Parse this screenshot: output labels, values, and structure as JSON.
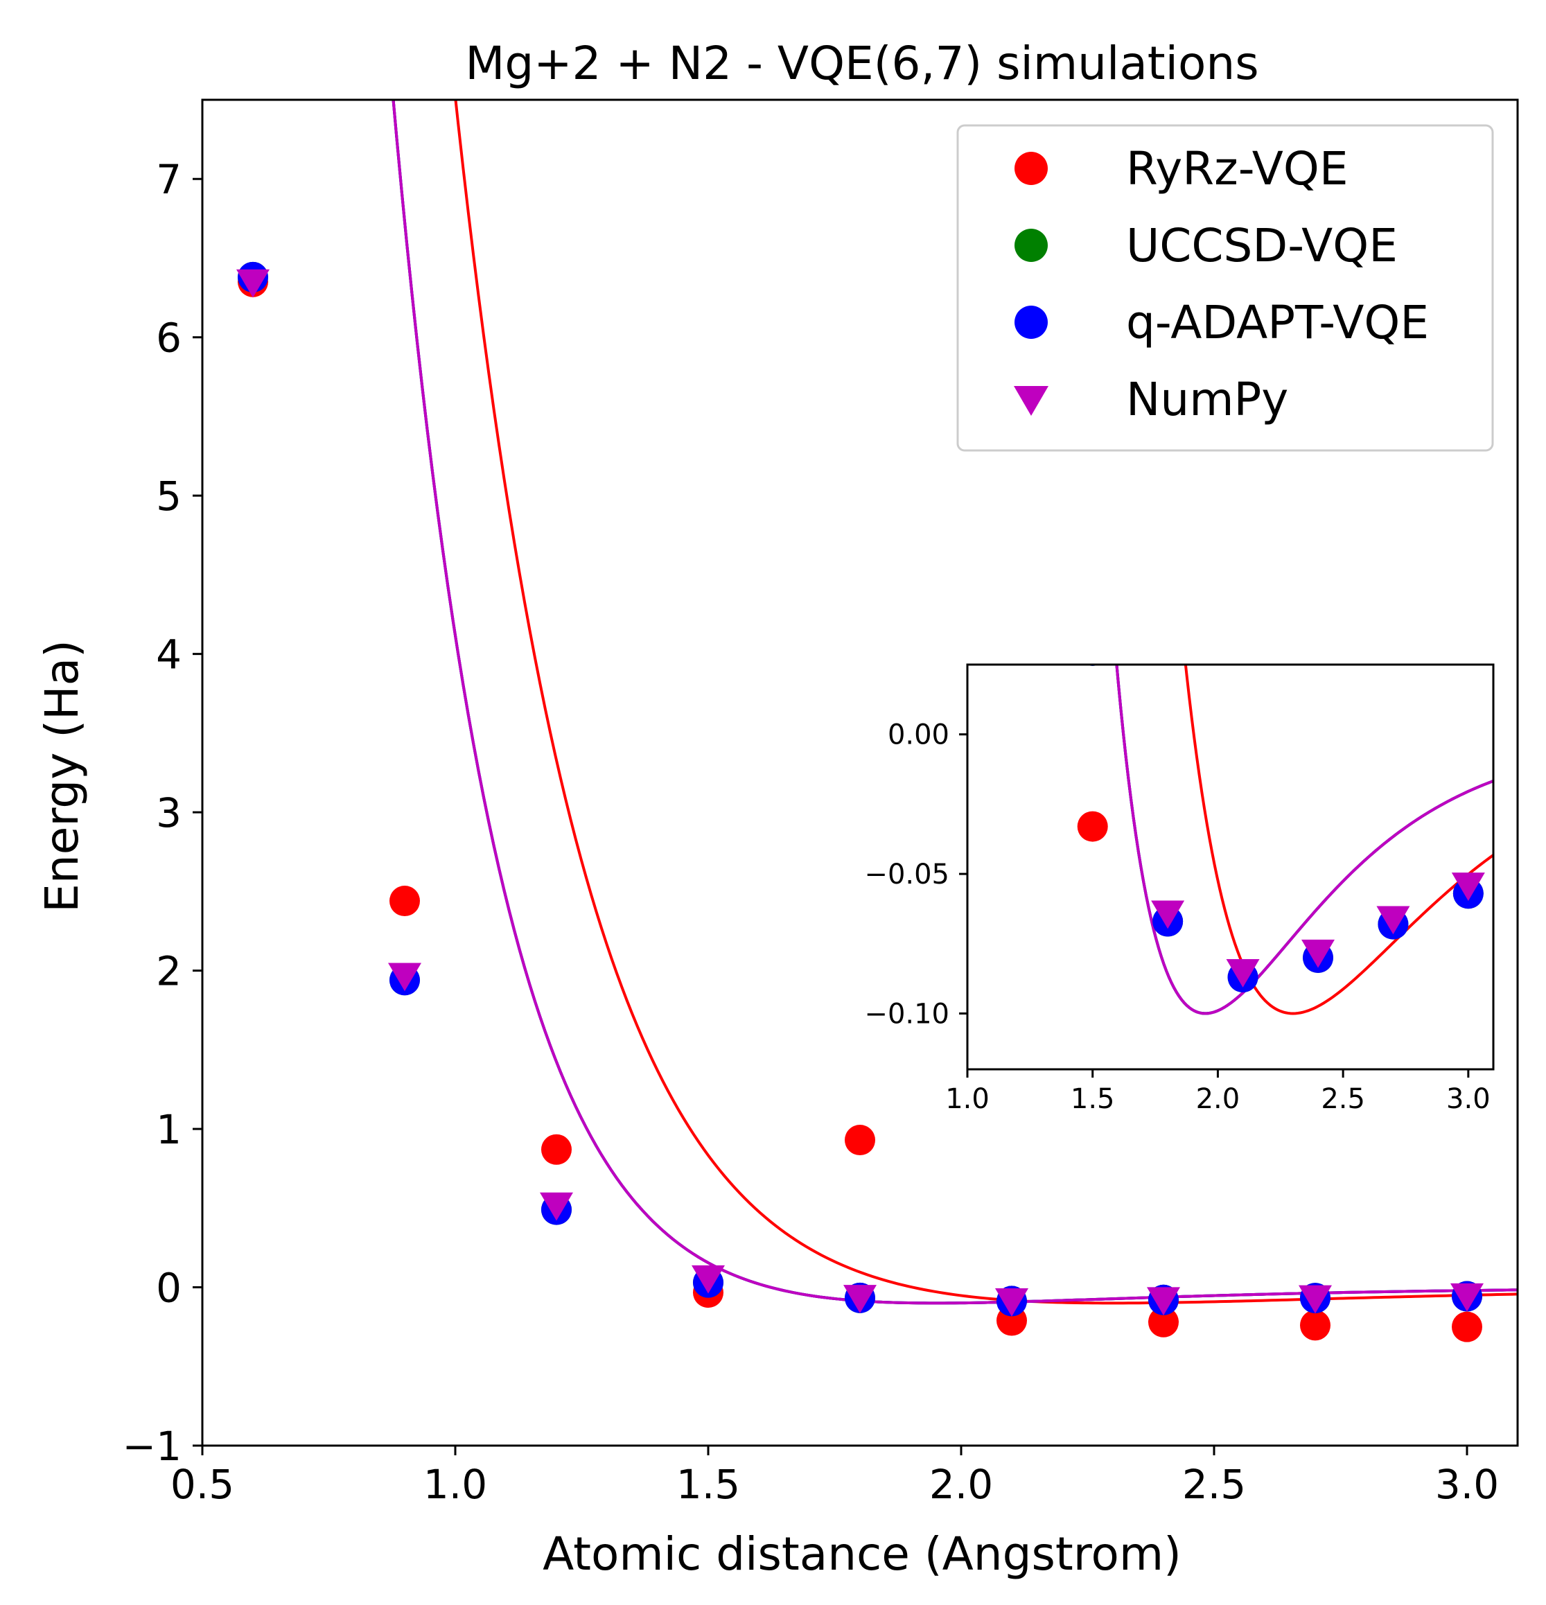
{
  "chart_data": [
    {
      "id": "main",
      "type": "scatter",
      "title": "Mg+2 + N2 - VQE(6,7) simulations",
      "xlabel": "Atomic distance (Angstrom)",
      "ylabel": "Energy (Ha)",
      "xlim": [
        0.5,
        3.1
      ],
      "ylim": [
        -1,
        7.5
      ],
      "xticks": [
        0.5,
        1.0,
        1.5,
        2.0,
        2.5,
        3.0
      ],
      "xtick_labels": [
        "0.5",
        "1.0",
        "1.5",
        "2.0",
        "2.5",
        "3.0"
      ],
      "yticks": [
        -1,
        0,
        1,
        2,
        3,
        4,
        5,
        6,
        7
      ],
      "ytick_labels": [
        "−1",
        "0",
        "1",
        "2",
        "3",
        "4",
        "5",
        "6",
        "7"
      ],
      "legend_position": "top-right",
      "series": [
        {
          "name": "RyRz-VQE",
          "marker": "circle",
          "color": "#ff0000",
          "x": [
            0.6,
            0.9,
            1.2,
            1.5,
            1.8,
            2.1,
            2.4,
            2.7,
            3.0
          ],
          "y": [
            6.35,
            2.44,
            0.87,
            -0.033,
            0.93,
            -0.21,
            -0.22,
            -0.24,
            -0.25
          ]
        },
        {
          "name": "UCCSD-VQE",
          "marker": "circle",
          "color": "#008000",
          "x": [
            0.6,
            0.9,
            1.2,
            1.5,
            1.8,
            2.1,
            2.4,
            2.7,
            3.0
          ],
          "y": [
            6.38,
            1.94,
            0.49,
            0.03,
            -0.067,
            -0.087,
            -0.08,
            -0.068,
            -0.057
          ]
        },
        {
          "name": "q-ADAPT-VQE",
          "marker": "circle",
          "color": "#0000ff",
          "x": [
            0.6,
            0.9,
            1.2,
            1.5,
            1.8,
            2.1,
            2.4,
            2.7,
            3.0
          ],
          "y": [
            6.38,
            1.94,
            0.49,
            0.03,
            -0.067,
            -0.087,
            -0.08,
            -0.068,
            -0.057
          ]
        },
        {
          "name": "NumPy",
          "marker": "triangle-down",
          "color": "#bf00bf",
          "x": [
            0.6,
            0.9,
            1.2,
            1.5,
            1.8,
            2.1,
            2.4,
            2.7,
            3.0
          ],
          "y": [
            6.35,
            1.97,
            0.52,
            0.06,
            -0.064,
            -0.085,
            -0.078,
            -0.066,
            -0.054
          ]
        }
      ],
      "fit_curves": [
        {
          "name": "RyRz fit",
          "color": "#ff0000",
          "De": 0.1,
          "re": 2.3,
          "a": 1.75
        },
        {
          "name": "UCCSD fit",
          "color": "#008000",
          "De": 0.1,
          "re": 1.95,
          "a": 2.12
        },
        {
          "name": "q-ADAPT fit",
          "color": "#0000ff",
          "De": 0.1,
          "re": 1.95,
          "a": 2.12
        },
        {
          "name": "NumPy fit",
          "color": "#bf00bf",
          "De": 0.1,
          "re": 1.95,
          "a": 2.12
        }
      ]
    },
    {
      "id": "inset",
      "type": "scatter",
      "title": "",
      "xlim": [
        1.0,
        3.1
      ],
      "ylim": [
        -0.12,
        0.025
      ],
      "xticks": [
        1.0,
        1.5,
        2.0,
        2.5,
        3.0
      ],
      "xtick_labels": [
        "1.0",
        "1.5",
        "2.0",
        "2.5",
        "3.0"
      ],
      "yticks": [
        0.0,
        -0.05,
        -0.1
      ],
      "ytick_labels": [
        "0.00",
        "−0.05",
        "−0.10"
      ],
      "note": "zoomed view of the same series and fit curves"
    }
  ]
}
